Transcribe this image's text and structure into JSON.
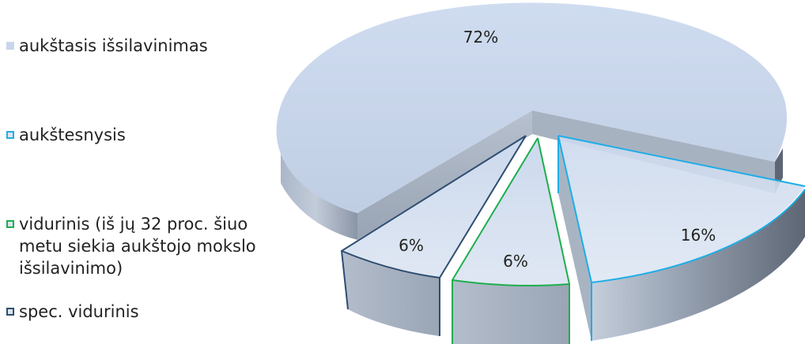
{
  "chart_data": {
    "type": "pie",
    "style": "3d-exploded",
    "title": "",
    "legend_position": "left",
    "slices": [
      {
        "label": "aukštasis išsilavinimas",
        "value": 72,
        "value_label": "72%",
        "color": "#c9d6ea",
        "outline": "#c9d6ea"
      },
      {
        "label": "aukštesnysis",
        "value": 16,
        "value_label": "16%",
        "color": "#c9d6ea",
        "outline": "#1eaee6"
      },
      {
        "label": "vidurinis (iš jų 32 proc. šiuo\nmetu siekia aukštojo mokslo\nišsilavinimo)",
        "value": 6,
        "value_label": "6%",
        "color": "#c9d6ea",
        "outline": "#1fae4e"
      },
      {
        "label": "spec. vidurinis",
        "value": 6,
        "value_label": "6%",
        "color": "#c9d6ea",
        "outline": "#2e4d70"
      }
    ]
  }
}
